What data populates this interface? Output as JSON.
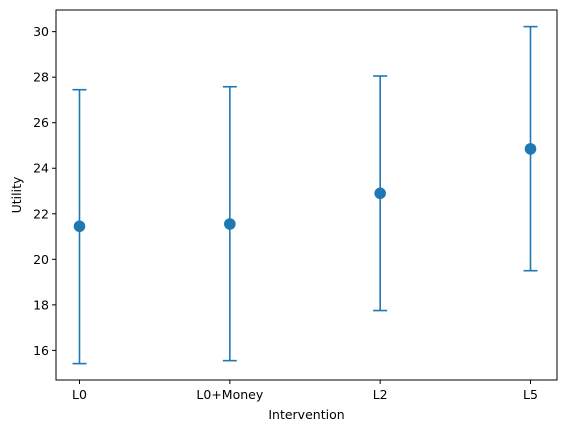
{
  "chart_data": {
    "type": "scatter",
    "title": "",
    "xlabel": "Intervention",
    "ylabel": "Utility",
    "categories": [
      "L0",
      "L0+Money",
      "L2",
      "L5"
    ],
    "series": [
      {
        "values": [
          21.45,
          21.55,
          22.9,
          24.85
        ],
        "error_low": [
          15.42,
          15.55,
          17.75,
          19.5
        ],
        "error_high": [
          27.45,
          27.58,
          28.05,
          30.22
        ]
      }
    ],
    "ylim": [
      14.7,
      30.95
    ],
    "yticks": [
      16,
      18,
      20,
      22,
      24,
      26,
      28,
      30
    ],
    "grid": false,
    "color": "#1f77b4"
  }
}
